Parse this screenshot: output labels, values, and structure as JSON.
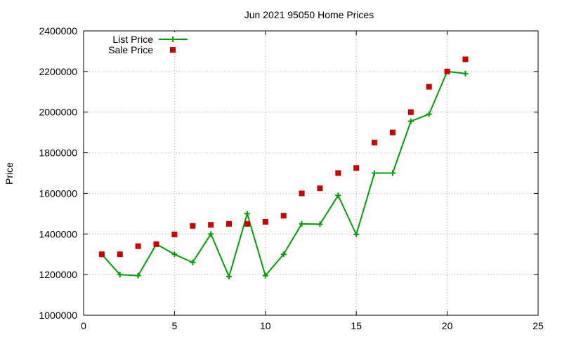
{
  "chart_data": {
    "type": "line",
    "title": "Jun 2021 95050 Home Prices",
    "xlabel": "",
    "ylabel": "Price",
    "xlim": [
      0,
      25
    ],
    "ylim": [
      1000000,
      2400000
    ],
    "x_ticks": [
      0,
      5,
      10,
      15,
      20,
      25
    ],
    "y_ticks": [
      1000000,
      1200000,
      1400000,
      1600000,
      1800000,
      2000000,
      2200000,
      2400000
    ],
    "grid": true,
    "legend_position": "top-left",
    "series": [
      {
        "name": "List Price",
        "style": "line+cross",
        "color": "#00a000",
        "x": [
          1,
          2,
          3,
          4,
          5,
          6,
          7,
          8,
          9,
          10,
          11,
          12,
          13,
          14,
          15,
          16,
          17,
          18,
          19,
          20,
          21
        ],
        "y": [
          1300000,
          1200000,
          1195000,
          1350000,
          1300000,
          1260000,
          1400000,
          1190000,
          1500000,
          1195000,
          1300000,
          1450000,
          1448000,
          1590000,
          1398000,
          1700000,
          1700000,
          1955000,
          1990000,
          2200000,
          2190000
        ]
      },
      {
        "name": "Sale Price",
        "style": "square-markers",
        "color": "#cc0000",
        "x": [
          1,
          2,
          3,
          4,
          5,
          6,
          7,
          8,
          9,
          10,
          11,
          12,
          13,
          14,
          15,
          16,
          17,
          18,
          19,
          20,
          21
        ],
        "y": [
          1300000,
          1300000,
          1340000,
          1350000,
          1398000,
          1440000,
          1445000,
          1450000,
          1450000,
          1460000,
          1490000,
          1600000,
          1625000,
          1700000,
          1725000,
          1850000,
          1900000,
          2000000,
          2125000,
          2200000,
          2260000
        ]
      }
    ]
  }
}
